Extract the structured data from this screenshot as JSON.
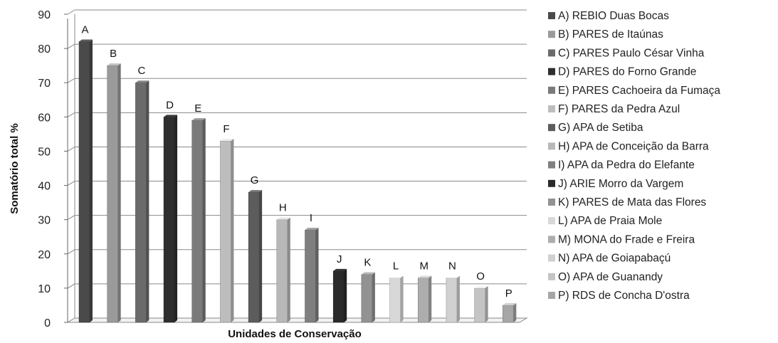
{
  "chart_data": {
    "type": "bar",
    "categories": [
      "A",
      "B",
      "C",
      "D",
      "E",
      "F",
      "G",
      "H",
      "I",
      "J",
      "K",
      "L",
      "M",
      "N",
      "O",
      "P"
    ],
    "values": [
      82,
      75,
      70,
      60,
      59,
      53,
      38,
      30,
      27,
      15,
      14,
      13,
      13,
      13,
      10,
      5
    ],
    "xlabel": "Unidades de Conservação",
    "ylabel": "Somatório total %",
    "ylim": [
      0,
      90
    ],
    "yticks": [
      "0",
      "10",
      "20",
      "30",
      "40",
      "50",
      "60",
      "70",
      "80",
      "90"
    ],
    "grid": true,
    "legend_position": "right",
    "legend": [
      "A) REBIO Duas Bocas",
      "B) PARES de Itaúnas",
      "C) PARES Paulo César Vinha",
      "D) PARES do Forno Grande",
      "E) PARES Cachoeira da Fumaça",
      "F) PARES da Pedra Azul",
      "G) APA de Setiba",
      "H) APA de Conceição da Barra",
      "I) APA da Pedra do Elefante",
      "J) ARIE Morro da Vargem",
      "K) PARES de Mata das Flores",
      "L) APA de Praia Mole",
      "M) MONA do Frade e Freira",
      "N) APA de Goiapabaçú",
      "O) APA de Guanandy",
      "P) RDS de Concha D'ostra"
    ],
    "colors": [
      "#4a4a4a",
      "#9a9a9a",
      "#6b6b6b",
      "#2e2e2e",
      "#7a7a7a",
      "#bdbdbd",
      "#5c5c5c",
      "#b8b8b8",
      "#7f7f7f",
      "#2a2a2a",
      "#929292",
      "#d8d8d8",
      "#adadad",
      "#d0d0d0",
      "#c4c4c4",
      "#a6a6a6"
    ]
  }
}
